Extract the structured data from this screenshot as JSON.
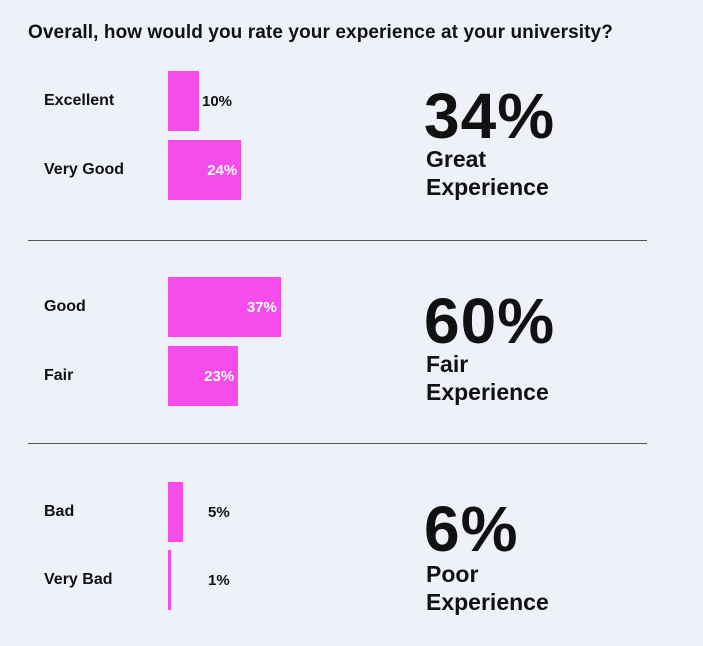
{
  "chart_data": {
    "type": "bar",
    "orientation": "horizontal",
    "title": "Overall, how would you rate your experience at your university?",
    "categories": [
      "Excellent",
      "Very Good",
      "Good",
      "Fair",
      "Bad",
      "Very Bad"
    ],
    "values": [
      10,
      24,
      37,
      23,
      5,
      1
    ],
    "value_labels": [
      "10%",
      "24%",
      "37%",
      "23%",
      "5%",
      "1%"
    ],
    "bar_color": "#f54ceb",
    "groups": [
      {
        "members": [
          "Excellent",
          "Very Good"
        ],
        "total": "34%",
        "label_line1": "Great",
        "label_line2": "Experience"
      },
      {
        "members": [
          "Good",
          "Fair"
        ],
        "total": "60%",
        "label_line1": "Fair",
        "label_line2": "Experience"
      },
      {
        "members": [
          "Bad",
          "Very Bad"
        ],
        "total": "6%",
        "label_line1": "Poor",
        "label_line2": "Experience"
      }
    ]
  }
}
